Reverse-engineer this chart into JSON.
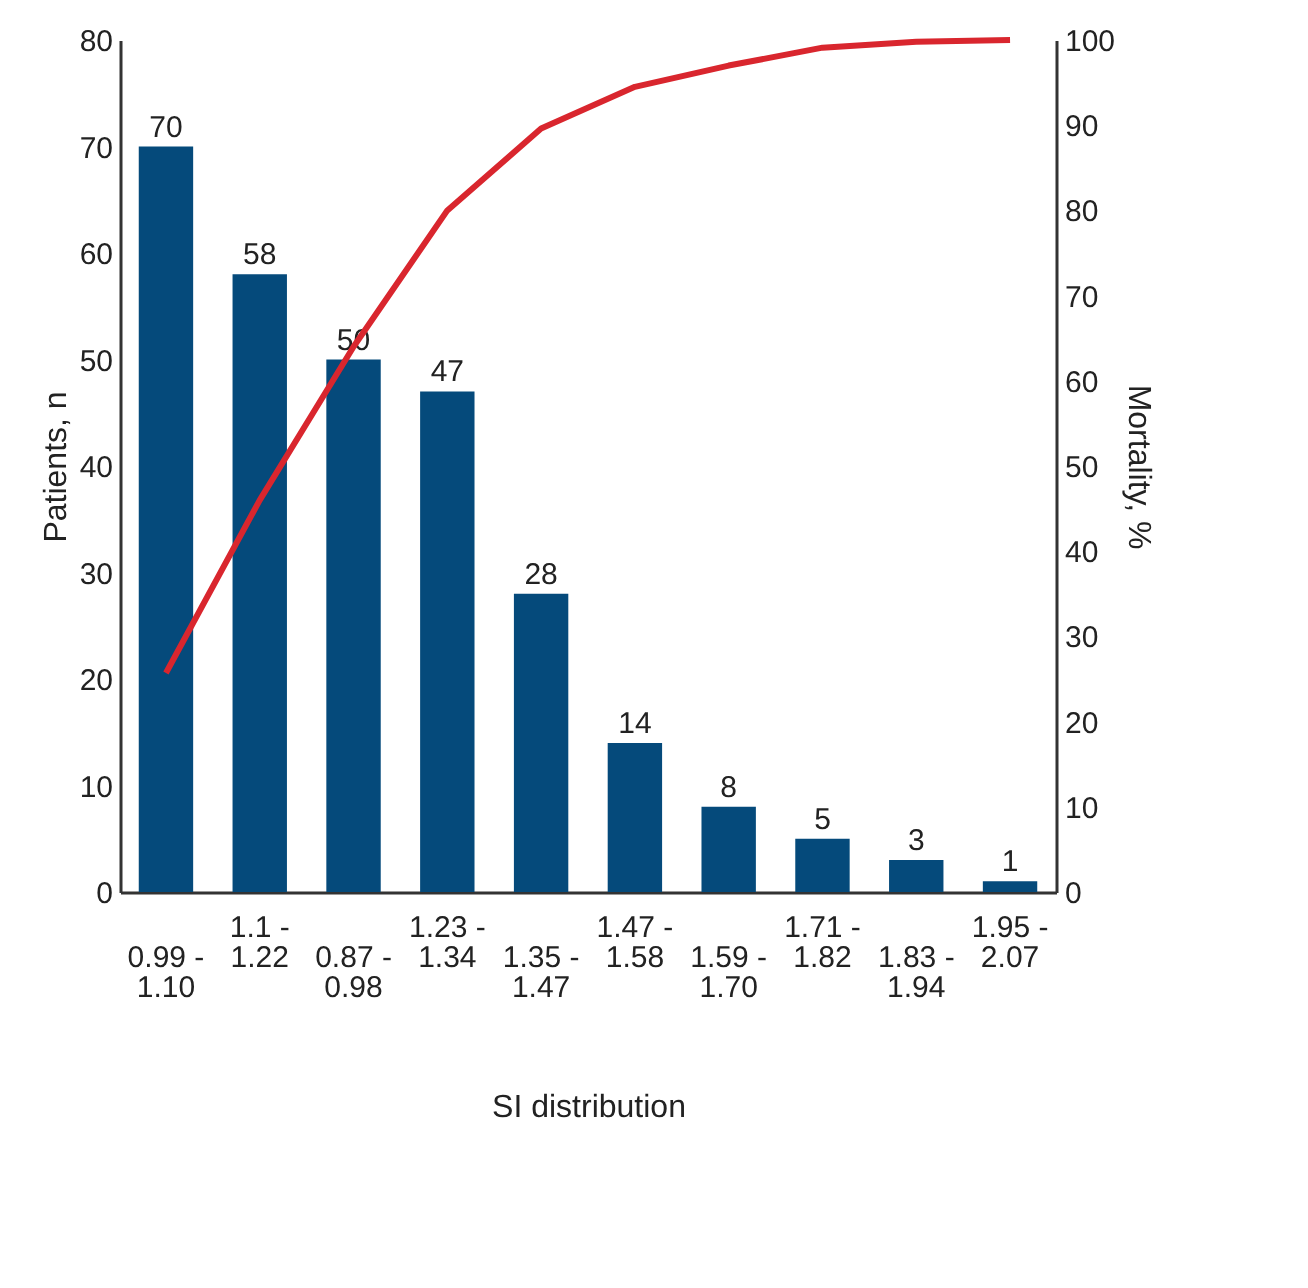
{
  "chart_data": {
    "type": "bar",
    "categories": [
      "0.99 - 1.10",
      "1.1 - 1.22",
      "0.87 - 0.98",
      "1.23 - 1.34",
      "1.35 - 1.47",
      "1.47 - 1.58",
      "1.59 - 1.70",
      "1.71 - 1.82",
      "1.83 - 1.94",
      "1.95 - 2.07"
    ],
    "series": [
      {
        "color": "#054a7b",
        "values": [
          70,
          58,
          50,
          47,
          28,
          14,
          8,
          5,
          3,
          1
        ],
        "value_labels": [
          "70",
          "58",
          "50",
          "47",
          "28",
          "14",
          "8",
          "5",
          "3",
          "1"
        ]
      },
      {
        "type": "line",
        "axis": "y2",
        "color": "#d9262e",
        "values": [
          25.7,
          46,
          64,
          80,
          89.6,
          94.5,
          97,
          99.1,
          99.8,
          100
        ]
      }
    ],
    "xlabel": "SI distribution",
    "ylabel": "Patients, n",
    "y2label": "Mortality, %",
    "ylim": [
      0,
      80
    ],
    "yticks": [
      0,
      10,
      20,
      30,
      40,
      50,
      60,
      70,
      80
    ],
    "y2lim": [
      0,
      100
    ],
    "y2ticks": [
      0,
      10,
      20,
      30,
      40,
      50,
      60,
      70,
      80,
      90,
      100
    ],
    "grid": false
  }
}
